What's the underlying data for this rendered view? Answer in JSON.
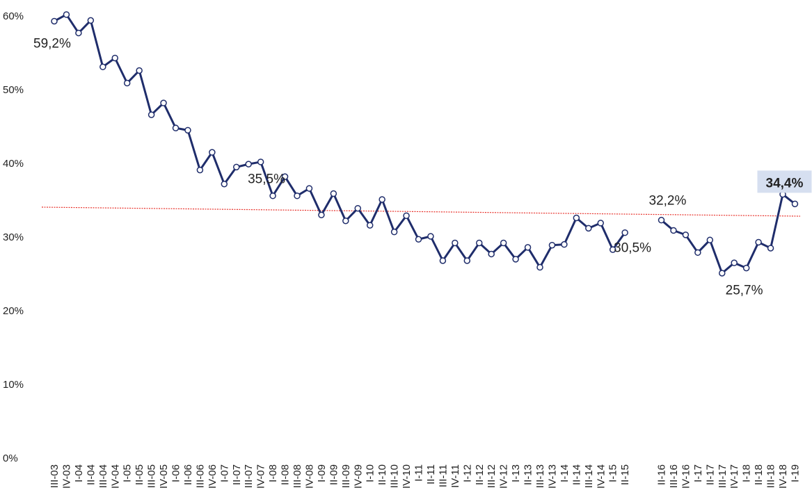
{
  "chart_data": {
    "type": "line",
    "categories": [
      "III-03",
      "IV-03",
      "I-04",
      "II-04",
      "III-04",
      "IV-04",
      "I-05",
      "II-05",
      "III-05",
      "IV-05",
      "I-06",
      "II-06",
      "III-06",
      "IV-06",
      "I-07",
      "II-07",
      "III-07",
      "IV-07",
      "I-08",
      "II-08",
      "III-08",
      "IV-08",
      "I-09",
      "II-09",
      "III-09",
      "IV-09",
      "I-10",
      "II-10",
      "III-10",
      "IV-10",
      "I-11",
      "II-11",
      "III-11",
      "IV-11",
      "I-12",
      "II-12",
      "III-12",
      "IV-12",
      "I-13",
      "II-13",
      "III-13",
      "IV-13",
      "I-14",
      "II-14",
      "III-14",
      "IV-14",
      "I-15",
      "II-15",
      null,
      null,
      "II-16",
      "III-16",
      "IV-16",
      "I-17",
      "II-17",
      "III-17",
      "IV-17",
      "I-18",
      "II-18",
      "III-18",
      "IV-18",
      "I-19"
    ],
    "series": [
      {
        "color": "#1f2d6b",
        "values": [
          59.2,
          60.1,
          57.6,
          59.3,
          53.0,
          54.2,
          50.8,
          52.5,
          46.5,
          48.1,
          44.7,
          44.4,
          39.0,
          41.4,
          37.1,
          39.4,
          39.8,
          40.1,
          35.5,
          38.1,
          35.5,
          36.5,
          32.9,
          35.8,
          32.1,
          33.8,
          31.5,
          35.0,
          30.6,
          32.8,
          29.6,
          30.0,
          26.7,
          29.1,
          26.7,
          29.1,
          27.6,
          29.1,
          26.9,
          28.5,
          25.8,
          28.8,
          28.9,
          32.5,
          31.1,
          31.8,
          28.2,
          30.5,
          null,
          null,
          32.2,
          30.8,
          30.2,
          27.8,
          29.5,
          25.0,
          26.4,
          25.7,
          29.2,
          28.4,
          35.7,
          34.4
        ],
        "value_labels": [
          "59,2%",
          null,
          null,
          null,
          null,
          null,
          null,
          null,
          null,
          null,
          null,
          null,
          null,
          null,
          null,
          null,
          null,
          null,
          "35,5%",
          null,
          null,
          null,
          null,
          null,
          null,
          null,
          null,
          null,
          null,
          null,
          null,
          null,
          null,
          null,
          null,
          null,
          null,
          null,
          null,
          null,
          null,
          null,
          null,
          null,
          null,
          null,
          null,
          "30,5%",
          null,
          null,
          "32,2%",
          null,
          null,
          null,
          null,
          null,
          null,
          "25,7%",
          null,
          null,
          null,
          "34,4%"
        ]
      }
    ],
    "ylim": [
      0,
      60
    ],
    "yticks": [
      {
        "value": 0,
        "label": "0%"
      },
      {
        "value": 10,
        "label": "10%"
      },
      {
        "value": 20,
        "label": "20%"
      },
      {
        "value": 30,
        "label": "30%"
      },
      {
        "value": 40,
        "label": "40%"
      },
      {
        "value": 50,
        "label": "50%"
      },
      {
        "value": 60,
        "label": "60%"
      }
    ],
    "trendline_color": "#e8312a"
  }
}
